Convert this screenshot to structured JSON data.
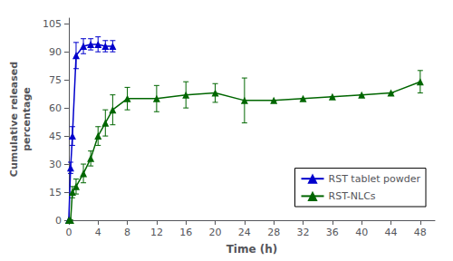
{
  "chart_data": {
    "type": "line",
    "xlabel": "Time (h)",
    "ylabel": "Cumulative released\npercentage",
    "series": [
      {
        "name": "RST tablet powder",
        "color": "#0000cc",
        "marker": "triangle",
        "x": [
          0,
          0.25,
          0.5,
          1,
          2,
          3,
          4,
          5,
          6
        ],
        "values": [
          0,
          28,
          45,
          88,
          93,
          94,
          94,
          93,
          93
        ],
        "yerr": [
          0,
          3,
          5,
          7,
          4,
          3,
          4,
          3,
          3
        ]
      },
      {
        "name": "RST-NLCs",
        "color": "#006600",
        "marker": "triangle",
        "x": [
          0,
          0.25,
          0.5,
          1,
          2,
          3,
          4,
          5,
          6,
          8,
          12,
          16,
          20,
          24,
          28,
          32,
          36,
          40,
          44,
          48
        ],
        "values": [
          0,
          0,
          15,
          18,
          25,
          33,
          45,
          52,
          59,
          65,
          65,
          67,
          68,
          64,
          64,
          65,
          66,
          67,
          68,
          74
        ],
        "yerr": [
          0,
          0,
          3,
          4,
          5,
          4,
          5,
          7,
          8,
          6,
          7,
          7,
          5,
          12,
          0,
          0,
          0,
          0,
          0,
          6
        ]
      }
    ],
    "xlim": [
      0,
      50
    ],
    "ylim": [
      0,
      108
    ],
    "xticks": [
      0,
      4,
      8,
      12,
      16,
      20,
      24,
      28,
      32,
      36,
      40,
      44,
      48
    ],
    "yticks": [
      0,
      15,
      30,
      45,
      60,
      75,
      90,
      105
    ],
    "grid": false,
    "legend": "lower right"
  }
}
